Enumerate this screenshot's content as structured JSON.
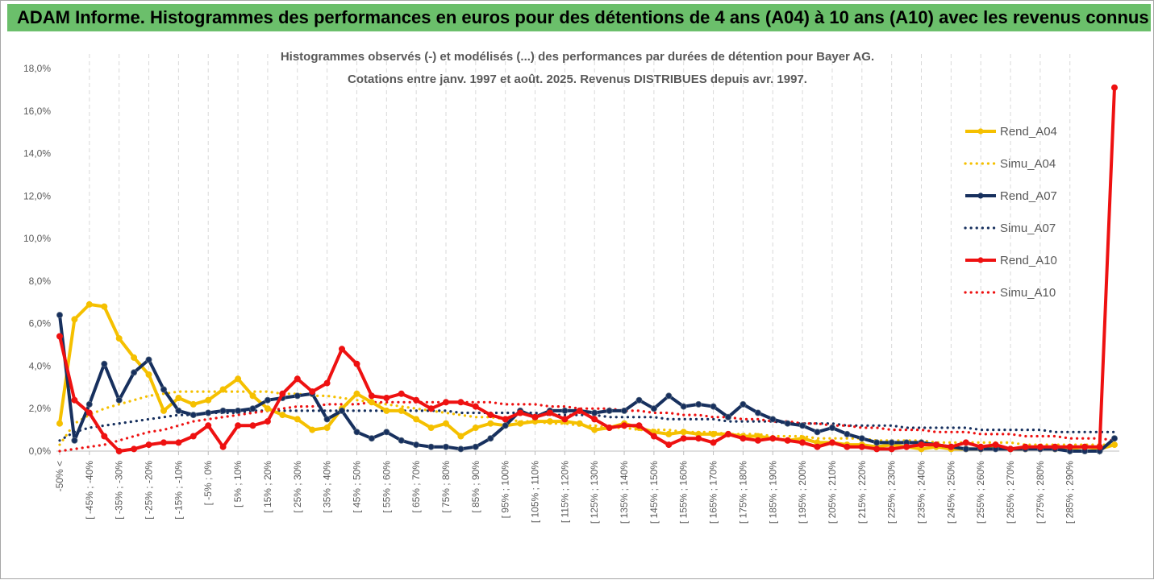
{
  "banner": {
    "title": "ADAM Informe. Histogrammes des performances en euros pour des détentions de 4 ans (A04) à 10 ans (A10) avec les revenus connus distribués"
  },
  "chart_data": {
    "type": "line",
    "title_lines": [
      "Histogrammes observés (-) et modélisés (...) des performances par durées de détention pour Bayer AG.",
      "Cotations entre janv. 1997 et août. 2025. Revenus DISTRIBUES depuis avr. 1997."
    ],
    "ylim": [
      0,
      18
    ],
    "y_ticks": [
      "0,0%",
      "2,0%",
      "4,0%",
      "6,0%",
      "8,0%",
      "10,0%",
      "12,0%",
      "14,0%",
      "16,0%",
      "18,0%"
    ],
    "x_tick_labels": [
      "-50% <",
      "[ -45% ; -40%",
      "[ -35% ; -30%",
      "[ -25% ; -20%",
      "[ -15% ; -10%",
      "[ -5% ; 0%",
      "[ 5% ; 10%",
      "[ 15% ; 20%",
      "[ 25% ; 30%",
      "[ 35% ; 40%",
      "[ 45% ; 50%",
      "[ 55% ; 60%",
      "[ 65% ; 70%",
      "[ 75% ; 80%",
      "[ 85% ; 90%",
      "[ 95% ; 100%",
      "[ 105% ; 110%",
      "[ 115% ; 120%",
      "[ 125% ; 130%",
      "[ 135% ; 140%",
      "[ 145% ; 150%",
      "[ 155% ; 160%",
      "[ 165% ; 170%",
      "[ 175% ; 180%",
      "[ 185% ; 190%",
      "[ 195% ; 200%",
      "[ 205% ; 210%",
      "[ 215% ; 220%",
      "[ 225% ; 230%",
      "[ 235% ; 240%",
      "[ 245% ; 250%",
      "[ 255% ; 260%",
      "[ 265% ; 270%",
      "[ 275% ; 280%",
      "[ 285% ; 290%"
    ],
    "grid": "vertical-dashed",
    "legend_position": "right",
    "series": [
      {
        "name": "Rend_A04",
        "style": "solid-markers",
        "color": "#f5c000",
        "values": [
          1.3,
          6.2,
          6.9,
          6.8,
          5.3,
          4.4,
          3.6,
          1.9,
          2.5,
          2.2,
          2.4,
          2.9,
          3.4,
          2.6,
          2.0,
          1.7,
          1.5,
          1.0,
          1.1,
          2.0,
          2.7,
          2.3,
          1.9,
          1.9,
          1.5,
          1.1,
          1.3,
          0.7,
          1.1,
          1.3,
          1.2,
          1.3,
          1.4,
          1.4,
          1.4,
          1.3,
          1.0,
          1.1,
          1.3,
          1.1,
          0.9,
          0.8,
          0.9,
          0.8,
          0.8,
          0.8,
          0.7,
          0.7,
          0.6,
          0.5,
          0.6,
          0.4,
          0.4,
          0.3,
          0.3,
          0.2,
          0.3,
          0.2,
          0.1,
          0.2,
          0.1,
          0.1,
          0.1,
          0.2,
          0.1,
          0.1,
          0.2,
          0.1,
          0.1,
          0.2,
          0.1,
          0.3
        ]
      },
      {
        "name": "Simu_A04",
        "style": "dotted",
        "color": "#f5c000",
        "values": [
          0.3,
          1.3,
          1.7,
          2.0,
          2.2,
          2.4,
          2.6,
          2.7,
          2.8,
          2.8,
          2.8,
          2.8,
          2.8,
          2.8,
          2.8,
          2.7,
          2.7,
          2.6,
          2.6,
          2.5,
          2.4,
          2.3,
          2.2,
          2.1,
          2.0,
          1.9,
          1.8,
          1.7,
          1.6,
          1.6,
          1.5,
          1.4,
          1.4,
          1.3,
          1.3,
          1.2,
          1.2,
          1.1,
          1.1,
          1.0,
          1.0,
          1.0,
          0.9,
          0.9,
          0.9,
          0.8,
          0.8,
          0.8,
          0.7,
          0.7,
          0.7,
          0.6,
          0.6,
          0.6,
          0.6,
          0.5,
          0.5,
          0.5,
          0.5,
          0.4,
          0.4,
          0.4,
          0.4,
          0.4,
          0.4,
          0.3,
          0.3,
          0.3,
          0.3,
          0.3,
          0.3,
          0.3
        ]
      },
      {
        "name": "Rend_A07",
        "style": "solid-markers",
        "color": "#17305e",
        "values": [
          6.4,
          0.5,
          2.2,
          4.1,
          2.4,
          3.7,
          4.3,
          2.9,
          1.9,
          1.7,
          1.8,
          1.9,
          1.9,
          2.0,
          2.4,
          2.5,
          2.6,
          2.7,
          1.5,
          1.9,
          0.9,
          0.6,
          0.9,
          0.5,
          0.3,
          0.2,
          0.2,
          0.1,
          0.2,
          0.6,
          1.2,
          1.9,
          1.6,
          1.9,
          1.9,
          1.9,
          1.8,
          1.9,
          1.9,
          2.4,
          2.0,
          2.6,
          2.1,
          2.2,
          2.1,
          1.6,
          2.2,
          1.8,
          1.5,
          1.3,
          1.2,
          0.9,
          1.1,
          0.8,
          0.6,
          0.4,
          0.4,
          0.4,
          0.4,
          0.3,
          0.2,
          0.1,
          0.1,
          0.1,
          0.1,
          0.1,
          0.1,
          0.1,
          0.0,
          0.0,
          0.0,
          0.6
        ]
      },
      {
        "name": "Simu_A07",
        "style": "dotted",
        "color": "#17305e",
        "values": [
          0.5,
          0.9,
          1.1,
          1.2,
          1.3,
          1.4,
          1.5,
          1.6,
          1.7,
          1.7,
          1.8,
          1.8,
          1.8,
          1.9,
          1.9,
          1.9,
          1.9,
          1.9,
          1.9,
          1.9,
          1.9,
          1.9,
          1.9,
          1.9,
          1.9,
          1.9,
          1.9,
          1.8,
          1.8,
          1.8,
          1.8,
          1.8,
          1.8,
          1.7,
          1.7,
          1.7,
          1.7,
          1.6,
          1.6,
          1.6,
          1.6,
          1.5,
          1.5,
          1.5,
          1.5,
          1.4,
          1.4,
          1.4,
          1.4,
          1.3,
          1.3,
          1.3,
          1.3,
          1.2,
          1.2,
          1.2,
          1.2,
          1.1,
          1.1,
          1.1,
          1.1,
          1.1,
          1.0,
          1.0,
          1.0,
          1.0,
          1.0,
          0.9,
          0.9,
          0.9,
          0.9,
          0.9
        ]
      },
      {
        "name": "Rend_A10",
        "style": "solid-markers",
        "color": "#ee1111",
        "values": [
          5.4,
          2.4,
          1.8,
          0.7,
          0.0,
          0.1,
          0.3,
          0.4,
          0.4,
          0.7,
          1.2,
          0.2,
          1.2,
          1.2,
          1.4,
          2.7,
          3.4,
          2.8,
          3.2,
          4.8,
          4.1,
          2.6,
          2.5,
          2.7,
          2.4,
          2.0,
          2.3,
          2.3,
          2.1,
          1.7,
          1.5,
          1.8,
          1.6,
          1.8,
          1.5,
          1.9,
          1.5,
          1.1,
          1.2,
          1.2,
          0.7,
          0.3,
          0.6,
          0.6,
          0.4,
          0.8,
          0.6,
          0.5,
          0.6,
          0.5,
          0.4,
          0.2,
          0.4,
          0.2,
          0.2,
          0.1,
          0.1,
          0.2,
          0.3,
          0.3,
          0.2,
          0.4,
          0.2,
          0.3,
          0.1,
          0.2,
          0.2,
          0.2,
          0.2,
          0.2,
          0.2,
          17.1
        ]
      },
      {
        "name": "Simu_A10",
        "style": "dotted",
        "color": "#ee1111",
        "values": [
          0.0,
          0.1,
          0.2,
          0.3,
          0.5,
          0.7,
          0.9,
          1.0,
          1.2,
          1.4,
          1.5,
          1.6,
          1.7,
          1.8,
          1.9,
          2.0,
          2.1,
          2.1,
          2.2,
          2.2,
          2.2,
          2.3,
          2.3,
          2.3,
          2.3,
          2.3,
          2.3,
          2.3,
          2.3,
          2.3,
          2.2,
          2.2,
          2.2,
          2.1,
          2.1,
          2.0,
          2.0,
          2.0,
          1.9,
          1.9,
          1.8,
          1.8,
          1.7,
          1.7,
          1.6,
          1.6,
          1.5,
          1.5,
          1.4,
          1.4,
          1.3,
          1.3,
          1.2,
          1.2,
          1.1,
          1.1,
          1.0,
          1.0,
          1.0,
          0.9,
          0.9,
          0.9,
          0.8,
          0.8,
          0.8,
          0.7,
          0.7,
          0.7,
          0.6,
          0.6,
          0.6,
          0.5
        ]
      }
    ]
  }
}
